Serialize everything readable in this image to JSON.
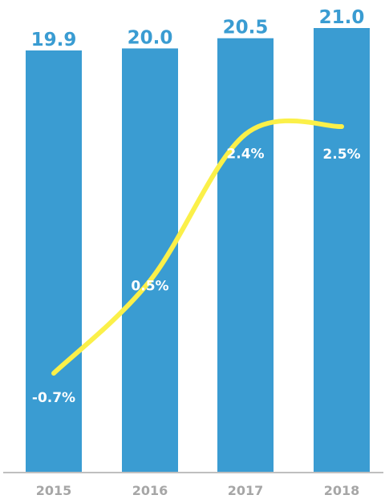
{
  "chart_data": {
    "type": "bar",
    "categories": [
      "2015",
      "2016",
      "2017",
      "2018"
    ],
    "series": [
      {
        "type": "bar",
        "values": [
          19.9,
          20.0,
          20.5,
          21.0
        ],
        "value_labels": [
          "19.9",
          "20.0",
          "20.5",
          "21.0"
        ],
        "color": "#3a9cd2"
      },
      {
        "type": "line",
        "values": [
          -0.7,
          0.5,
          2.4,
          2.5
        ],
        "value_labels": [
          "-0.7%",
          "0.5%",
          "2.4%",
          "2.5%"
        ],
        "color": "#fbf049"
      }
    ],
    "title": "",
    "xlabel": "",
    "ylabel": "",
    "grid": false,
    "legend": "none",
    "colors": {
      "bar": "#3a9cd2",
      "line": "#fbf049",
      "bar_value_text": "#3a9cd2",
      "line_label_text": "#ffffff",
      "tick_text": "#a6a6a6",
      "axis": "#bfbfbf"
    }
  }
}
